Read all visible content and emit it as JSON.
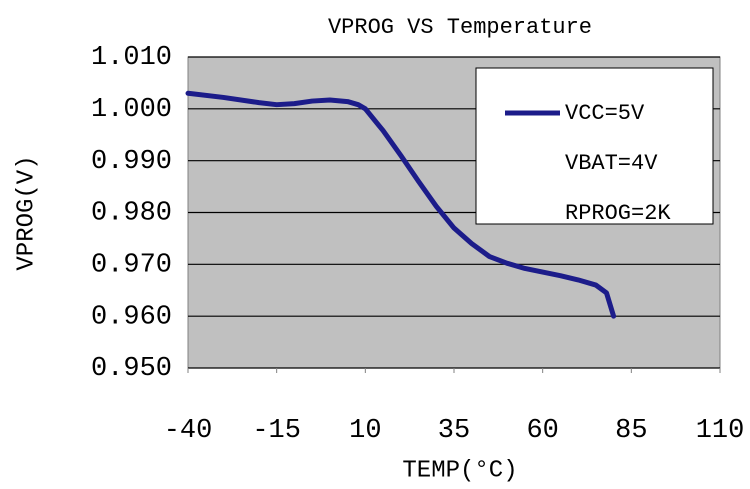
{
  "chart_data": {
    "type": "line",
    "title": "VPROG VS Temperature",
    "x_label": "TEMP(°C)",
    "y_label": "VPROG(V)",
    "x": [
      -40,
      -30,
      -20,
      -15,
      -10,
      -5,
      0,
      5,
      8,
      10,
      15,
      20,
      25,
      30,
      35,
      40,
      45,
      50,
      55,
      60,
      65,
      70,
      75,
      78,
      80
    ],
    "series": [
      {
        "name": "VCC=5V",
        "color": "#1c1c8a",
        "values": [
          1.003,
          1.0022,
          1.0012,
          1.0008,
          1.001,
          1.0015,
          1.0017,
          1.0014,
          1.0008,
          1.0,
          0.9958,
          0.991,
          0.986,
          0.9812,
          0.977,
          0.974,
          0.9715,
          0.9702,
          0.9692,
          0.9685,
          0.9678,
          0.967,
          0.966,
          0.9645,
          0.96
        ]
      }
    ],
    "annotations": [
      "VBAT=4V",
      "RPROG=2K"
    ],
    "xlim": [
      -40,
      110
    ],
    "xticks": [
      -40,
      -15,
      10,
      35,
      60,
      85,
      110
    ],
    "ylim": [
      0.95,
      1.01
    ],
    "yticks": [
      {
        "value": 0.95,
        "label": "0.950"
      },
      {
        "value": 0.96,
        "label": "0.960"
      },
      {
        "value": 0.97,
        "label": "0.970"
      },
      {
        "value": 0.98,
        "label": "0.980"
      },
      {
        "value": 0.99,
        "label": "0.990"
      },
      {
        "value": 1.0,
        "label": "1.000"
      },
      {
        "value": 1.01,
        "label": "1.010"
      }
    ],
    "grid": true,
    "plot_background": "#c0c0c0"
  }
}
